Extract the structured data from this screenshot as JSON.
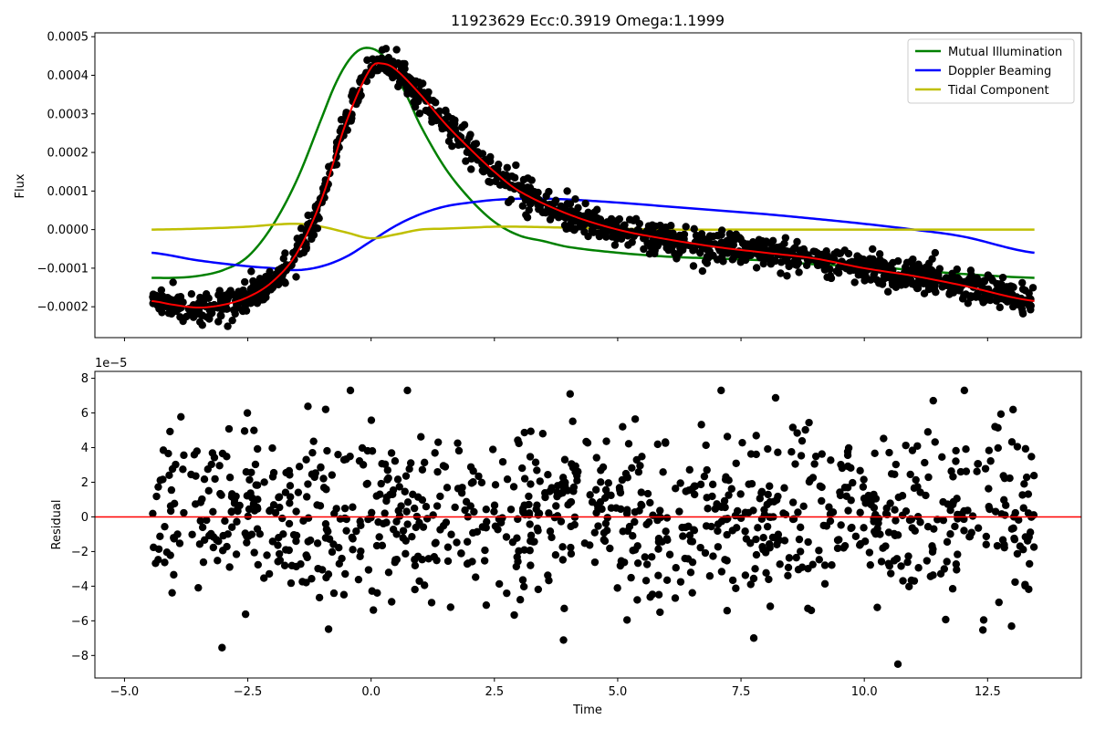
{
  "chart_data": {
    "title": "11923629    Ecc:0.3919  Omega:1.1999",
    "panels": [
      {
        "name": "flux-panel",
        "type": "line+scatter",
        "xlim": [
          -5.6,
          14.4
        ],
        "ylim": [
          -0.00028,
          0.00051
        ],
        "ylabel": "Flux",
        "xlabel": "",
        "xticks": [
          -5.0,
          -2.5,
          0.0,
          2.5,
          5.0,
          7.5,
          10.0,
          12.5
        ],
        "xtick_labels_shown": false,
        "yticks": [
          -0.0002,
          -0.0001,
          0.0,
          0.0001,
          0.0002,
          0.0003,
          0.0004,
          0.0005
        ],
        "ytick_labels": [
          "−0.0002",
          "−0.0001",
          "0.0000",
          "0.0001",
          "0.0002",
          "0.0003",
          "0.0004",
          "0.0005"
        ],
        "grid": false,
        "legend": {
          "placement": "top-right",
          "entries": [
            {
              "name": "Mutual Illumination",
              "color": "#008000"
            },
            {
              "name": "Doppler Beaming",
              "color": "#0000ff"
            },
            {
              "name": "Tidal Component",
              "color": "#bfbf00"
            }
          ]
        },
        "observed_points": {
          "color": "#000000",
          "x_range": [
            -4.45,
            13.45
          ],
          "count": 1400,
          "note_scatter_sigma": 2.2e-05,
          "fit_curve_knots": {
            "x": [
              -4.45,
              -4.0,
              -3.5,
              -3.0,
              -2.5,
              -2.0,
              -1.5,
              -1.0,
              -0.5,
              0.0,
              0.25,
              0.5,
              1.0,
              1.5,
              2.0,
              2.5,
              3.0,
              4.0,
              5.0,
              6.0,
              7.0,
              8.0,
              9.0,
              10.0,
              11.0,
              12.0,
              13.45
            ],
            "y": [
              -0.000185,
              -0.000195,
              -0.000202,
              -0.000195,
              -0.000175,
              -0.000135,
              -6e-05,
              8e-05,
              0.00028,
              0.00042,
              0.00043,
              0.000415,
              0.00035,
              0.000275,
              0.00021,
              0.00015,
              0.0001,
              4e-05,
              0.0,
              -2.5e-05,
              -4.5e-05,
              -6e-05,
              -7.5e-05,
              -0.0001,
              -0.00012,
              -0.000145,
              -0.000185
            ]
          }
        },
        "series": [
          {
            "name": "Mutual Illumination",
            "color": "#008000",
            "x": [
              -4.45,
              -4.0,
              -3.5,
              -3.0,
              -2.5,
              -2.0,
              -1.5,
              -1.0,
              -0.75,
              -0.5,
              -0.25,
              0.0,
              0.25,
              0.5,
              0.75,
              1.0,
              1.5,
              2.0,
              2.5,
              3.0,
              3.5,
              4.0,
              5.0,
              6.0,
              7.0,
              8.0,
              9.0,
              10.0,
              11.0,
              12.0,
              13.45
            ],
            "y": [
              -0.000125,
              -0.000125,
              -0.00012,
              -0.000105,
              -7e-05,
              1e-05,
              0.00013,
              0.00029,
              0.00037,
              0.00043,
              0.000465,
              0.00047,
              0.00045,
              0.0004,
              0.00034,
              0.00027,
              0.00016,
              8e-05,
              2e-05,
              -1.5e-05,
              -3e-05,
              -4.5e-05,
              -6e-05,
              -7e-05,
              -7.5e-05,
              -8e-05,
              -9e-05,
              -9.5e-05,
              -0.000105,
              -0.000115,
              -0.000125
            ]
          },
          {
            "name": "Doppler Beaming",
            "color": "#0000ff",
            "x": [
              -4.45,
              -3.5,
              -2.5,
              -2.0,
              -1.5,
              -1.0,
              -0.5,
              0.0,
              0.5,
              1.0,
              1.5,
              2.0,
              2.5,
              3.0,
              3.5,
              4.0,
              5.0,
              6.0,
              7.0,
              8.0,
              9.0,
              10.0,
              11.0,
              12.0,
              13.45
            ],
            "y": [
              -6e-05,
              -8e-05,
              -9.5e-05,
              -0.0001,
              -0.000105,
              -9.5e-05,
              -7e-05,
              -3e-05,
              1e-05,
              4e-05,
              6e-05,
              7e-05,
              7.7e-05,
              8e-05,
              8e-05,
              7.8e-05,
              7e-05,
              6e-05,
              5e-05,
              4e-05,
              2.8e-05,
              1.5e-05,
              0.0,
              -1.8e-05,
              -6e-05
            ]
          },
          {
            "name": "Tidal Component",
            "color": "#bfbf00",
            "x": [
              -4.45,
              -3.5,
              -2.5,
              -2.0,
              -1.5,
              -1.0,
              -0.5,
              0.0,
              0.5,
              1.0,
              1.5,
              2.0,
              2.5,
              3.0,
              4.0,
              5.0,
              6.0,
              8.0,
              10.0,
              12.0,
              13.45
            ],
            "y": [
              0.0,
              2.5e-06,
              7.5e-06,
              1.25e-05,
              1.5e-05,
              7.5e-06,
              -7.5e-06,
              -2.25e-05,
              -1.25e-05,
              0.0,
              2.5e-06,
              5e-06,
              7.5e-06,
              7.5e-06,
              5e-06,
              2.5e-06,
              0.0,
              0.0,
              0.0,
              0.0,
              0.0
            ]
          },
          {
            "name": "",
            "color": "#ff0000",
            "x": [
              -4.45,
              -4.0,
              -3.5,
              -3.0,
              -2.5,
              -2.0,
              -1.5,
              -1.0,
              -0.5,
              0.0,
              0.25,
              0.5,
              1.0,
              1.5,
              2.0,
              2.5,
              3.0,
              4.0,
              5.0,
              6.0,
              7.0,
              8.0,
              9.0,
              10.0,
              11.0,
              12.0,
              13.45
            ],
            "y": [
              -0.000185,
              -0.000195,
              -0.000202,
              -0.000195,
              -0.000175,
              -0.000135,
              -6e-05,
              8e-05,
              0.00028,
              0.00042,
              0.00043,
              0.000415,
              0.00035,
              0.000275,
              0.00021,
              0.00015,
              0.0001,
              4e-05,
              0.0,
              -2.5e-05,
              -4.5e-05,
              -6e-05,
              -7.5e-05,
              -0.0001,
              -0.00012,
              -0.000145,
              -0.000185
            ]
          }
        ]
      },
      {
        "name": "residual-panel",
        "type": "scatter",
        "xlim": [
          -5.6,
          14.4
        ],
        "ylim": [
          -9.3,
          8.4
        ],
        "scale_label": "1e−5",
        "ylabel": "Residual",
        "xlabel": "Time",
        "xticks": [
          -5.0,
          -2.5,
          0.0,
          2.5,
          5.0,
          7.5,
          10.0,
          12.5
        ],
        "xtick_labels": [
          "−5.0",
          "−2.5",
          "0.0",
          "2.5",
          "5.0",
          "7.5",
          "10.0",
          "12.5"
        ],
        "yticks": [
          -8,
          -6,
          -4,
          -2,
          0,
          2,
          4,
          6,
          8
        ],
        "ytick_labels": [
          "−8",
          "−6",
          "−4",
          "−2",
          "0",
          "2",
          "4",
          "6",
          "8"
        ],
        "grid": false,
        "zero_line": {
          "y": 0,
          "color": "#ff0000"
        },
        "points": {
          "color": "#000000",
          "x_range": [
            -4.45,
            13.45
          ],
          "count": 1000,
          "sigma": 2.5
        }
      }
    ]
  },
  "colors": {
    "points": "#000000",
    "fit": "#ff0000",
    "mutual": "#008000",
    "doppler": "#0000ff",
    "tidal": "#bfbf00"
  }
}
